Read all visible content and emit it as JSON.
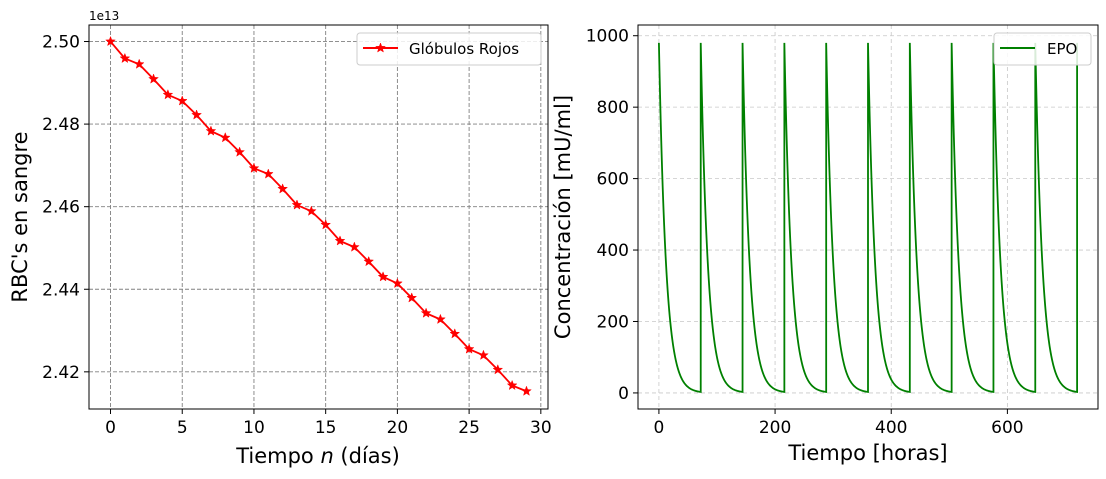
{
  "chart_data": [
    {
      "type": "line",
      "title": "",
      "xlabel_prefix": "Tiempo ",
      "xlabel_var": "n",
      "xlabel_suffix": " (días)",
      "ylabel": "RBC's en sangre",
      "offset_text": "1e13",
      "xlim": [
        -1.5,
        30.5
      ],
      "ylim": [
        2.411,
        2.504
      ],
      "xticks": [
        0,
        5,
        10,
        15,
        20,
        25,
        30
      ],
      "xtick_labels": [
        "0",
        "5",
        "10",
        "15",
        "20",
        "25",
        "30"
      ],
      "yticks": [
        2.42,
        2.44,
        2.46,
        2.48,
        2.5
      ],
      "ytick_labels": [
        "2.42",
        "2.44",
        "2.46",
        "2.48",
        "2.50"
      ],
      "grid": true,
      "legend_position": "top-right",
      "series": [
        {
          "name": "Glóbulos Rojos",
          "color": "#ff0000",
          "marker": "star",
          "x": [
            0,
            1,
            2,
            3,
            4,
            5,
            6,
            7,
            8,
            9,
            10,
            11,
            12,
            13,
            14,
            15,
            16,
            17,
            18,
            19,
            20,
            21,
            22,
            23,
            24,
            25,
            26,
            27,
            28,
            29
          ],
          "y": [
            2.5,
            2.4959,
            2.4945,
            2.4909,
            2.4871,
            2.4856,
            2.4822,
            2.4783,
            2.4767,
            2.4732,
            2.4693,
            2.4679,
            2.4643,
            2.4604,
            2.4589,
            2.4556,
            2.4517,
            2.4502,
            2.4467,
            2.443,
            2.4414,
            2.4379,
            2.4342,
            2.4327,
            2.4292,
            2.4255,
            2.424,
            2.4205,
            2.4167,
            2.4153
          ]
        }
      ]
    },
    {
      "type": "line",
      "title": "",
      "xlabel": "Tiempo [horas]",
      "ylabel": "Concentración [mU/ml]",
      "xlim": [
        -36,
        756
      ],
      "ylim": [
        -45,
        1030
      ],
      "xticks": [
        0,
        200,
        400,
        600
      ],
      "xtick_labels": [
        "0",
        "200",
        "400",
        "600"
      ],
      "yticks": [
        0,
        200,
        400,
        600,
        800,
        1000
      ],
      "ytick_labels": [
        "0",
        "200",
        "400",
        "600",
        "800",
        "1000"
      ],
      "grid": true,
      "legend_position": "top-right",
      "series": [
        {
          "name": "EPO",
          "color": "#008000",
          "peak": 980,
          "half_life_hours": 8.5,
          "dose_interval_hours": 72,
          "doses": 10,
          "t_end": 720
        }
      ]
    }
  ]
}
